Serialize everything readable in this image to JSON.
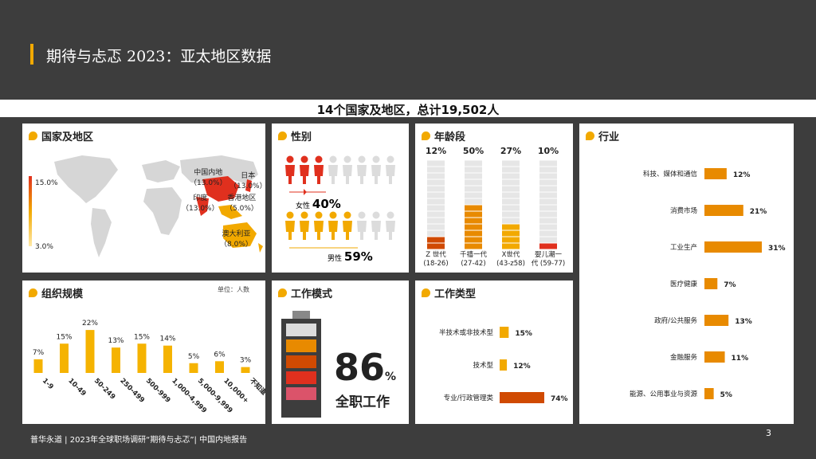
{
  "header": {
    "title": "期待与忐忑 2023：亚太地区数据"
  },
  "subtitle": "14个国家及地区，总计19,502人",
  "colors": {
    "accent": "#f2a900",
    "orange": "#e88a00",
    "deep": "#d04a02",
    "red": "#e0301e",
    "pink": "#db536a",
    "dark": "#3d3d3d",
    "gray": "#dcdcdc"
  },
  "map": {
    "title": "国家及地区",
    "legend_max": "15.0%",
    "legend_min": "3.0%",
    "labels": [
      {
        "name": "中国内地",
        "value": "（13.0%）"
      },
      {
        "name": "日本",
        "value": "（13.0%）"
      },
      {
        "name": "印度",
        "value": "（13.0%）"
      },
      {
        "name": "香港地区",
        "value": "（5.0%）"
      },
      {
        "name": "澳大利亚",
        "value": "（8.0%）"
      }
    ]
  },
  "gender": {
    "title": "性别",
    "female_label": "女性",
    "female_value": "40%",
    "male_label": "男性",
    "male_value": "59%"
  },
  "age": {
    "title": "年龄段",
    "groups": [
      {
        "pct": "12%",
        "label1": "Z 世代",
        "label2": "(18-26)"
      },
      {
        "pct": "50%",
        "label1": "千禧一代",
        "label2": "(27-42)"
      },
      {
        "pct": "27%",
        "label1": "X世代",
        "label2": "(43-z58)"
      },
      {
        "pct": "10%",
        "label1": "婴儿潮一",
        "label2": "代 (59-77)"
      }
    ]
  },
  "industry": {
    "title": "行业",
    "items": [
      {
        "label": "科技、媒体和通信",
        "pct": "12%"
      },
      {
        "label": "消费市场",
        "pct": "21%"
      },
      {
        "label": "工业生产",
        "pct": "31%"
      },
      {
        "label": "医疗健康",
        "pct": "7%"
      },
      {
        "label": "政府/公共服务",
        "pct": "13%"
      },
      {
        "label": "金融服务",
        "pct": "11%"
      },
      {
        "label": "能源、公用事业与资源",
        "pct": "5%"
      }
    ]
  },
  "org": {
    "title": "组织规模",
    "unit": "单位：人数",
    "items": [
      {
        "label": "1-9",
        "pct": "7%"
      },
      {
        "label": "10-49",
        "pct": "15%"
      },
      {
        "label": "50-249",
        "pct": "22%"
      },
      {
        "label": "250-499",
        "pct": "13%"
      },
      {
        "label": "500-999",
        "pct": "15%"
      },
      {
        "label": "1,000-4,999",
        "pct": "14%"
      },
      {
        "label": "5,000-9,999",
        "pct": "5%"
      },
      {
        "label": "10,000+",
        "pct": "6%"
      },
      {
        "label": "不知道",
        "pct": "3%"
      }
    ]
  },
  "work_mode": {
    "title": "工作模式",
    "value": "86",
    "unit": "%",
    "label": "全职工作"
  },
  "work_type": {
    "title": "工作类型",
    "items": [
      {
        "label": "半技术或非技术型",
        "pct": "15%"
      },
      {
        "label": "技术型",
        "pct": "12%"
      },
      {
        "label": "专业/行政管理类",
        "pct": "74%"
      }
    ]
  },
  "footer": "普华永道 | 2023年全球职场调研“期待与忐忑”| 中国内地报告",
  "page_number": "3",
  "chart_data": [
    {
      "type": "bar",
      "title": "年龄段",
      "categories": [
        "Z 世代 (18-26)",
        "千禧一代 (27-42)",
        "X世代 (43-z58)",
        "婴儿潮一代 (59-77)"
      ],
      "values": [
        12,
        50,
        27,
        10
      ]
    },
    {
      "type": "bar",
      "title": "行业",
      "categories": [
        "科技、媒体和通信",
        "消费市场",
        "工业生产",
        "医疗健康",
        "政府/公共服务",
        "金融服务",
        "能源、公用事业与资源"
      ],
      "values": [
        12,
        21,
        31,
        7,
        13,
        11,
        5
      ]
    },
    {
      "type": "bar",
      "title": "组织规模",
      "categories": [
        "1-9",
        "10-49",
        "50-249",
        "250-499",
        "500-999",
        "1,000-4,999",
        "5,000-9,999",
        "10,000+",
        "不知道"
      ],
      "values": [
        7,
        15,
        22,
        13,
        15,
        14,
        5,
        6,
        3
      ]
    },
    {
      "type": "bar",
      "title": "工作类型",
      "categories": [
        "半技术或非技术型",
        "技术型",
        "专业/行政管理类"
      ],
      "values": [
        15,
        12,
        74
      ]
    },
    {
      "type": "pie",
      "title": "性别",
      "categories": [
        "女性",
        "男性"
      ],
      "values": [
        40,
        59
      ]
    },
    {
      "type": "bar",
      "title": "工作模式",
      "categories": [
        "全职工作"
      ],
      "values": [
        86
      ]
    }
  ]
}
